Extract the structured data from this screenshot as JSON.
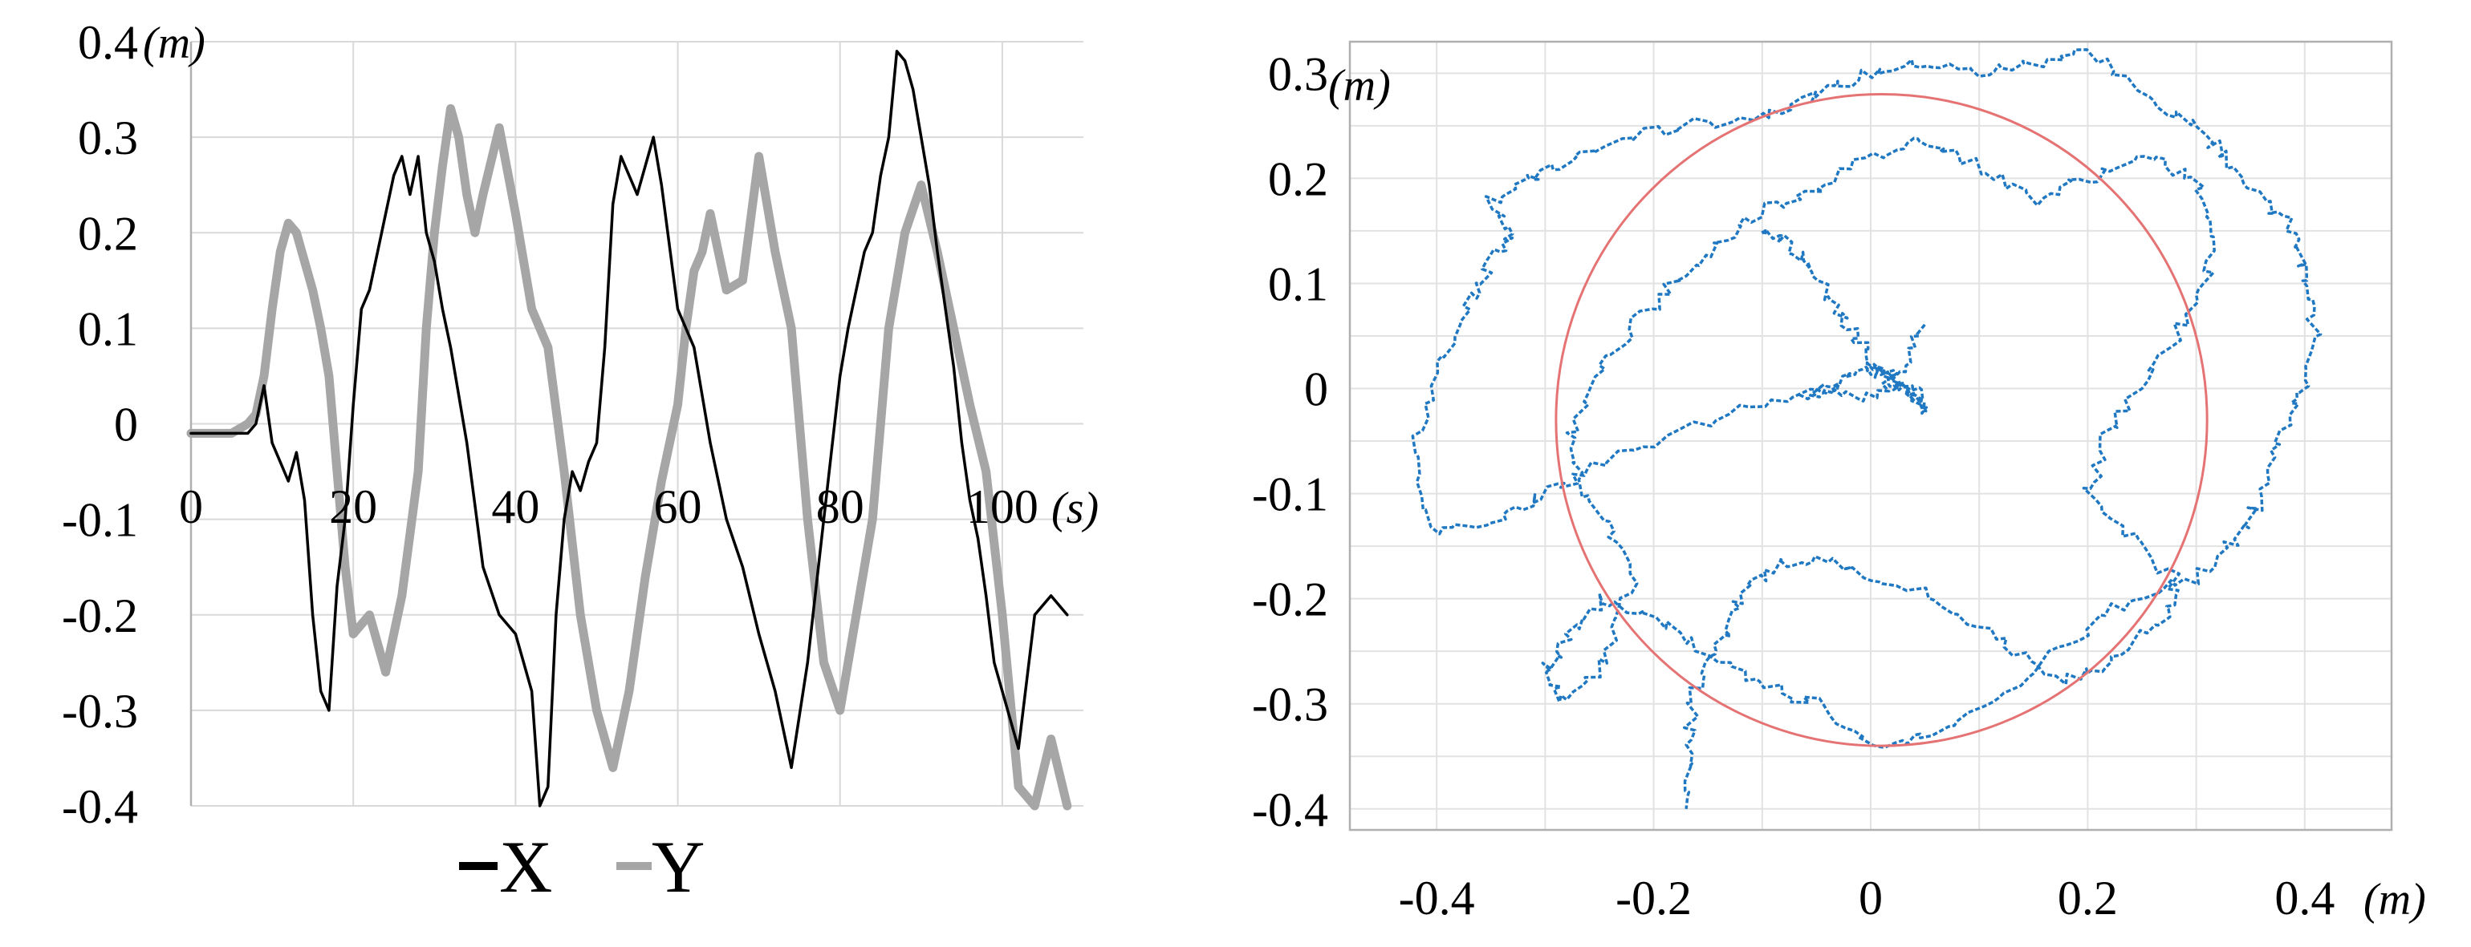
{
  "chart_data": [
    {
      "type": "line",
      "x_unit": "(s)",
      "y_unit": "(m)",
      "xlim": [
        0,
        110
      ],
      "ylim": [
        -0.4,
        0.4
      ],
      "x_ticks": [
        "0",
        "20",
        "40",
        "60",
        "80",
        "100"
      ],
      "y_ticks": [
        "0.4",
        "0.3",
        "0.2",
        "0.1",
        "0",
        "-0.1",
        "-0.2",
        "-0.3",
        "-0.4"
      ],
      "legend": [
        "X",
        "Y"
      ],
      "legend_position": "bottom",
      "grid": true,
      "colors": {
        "X": "#000000",
        "Y": "#a6a6a6"
      },
      "series": [
        {
          "name": "X",
          "x": [
            0,
            5,
            7,
            8,
            9,
            10,
            11,
            12,
            13,
            14,
            15,
            16,
            17,
            18,
            19,
            20,
            21,
            22,
            23,
            24,
            25,
            26,
            27,
            28,
            29,
            30,
            31,
            32,
            34,
            36,
            38,
            40,
            42,
            43,
            44,
            45,
            46,
            47,
            48,
            49,
            50,
            51,
            52,
            53,
            54,
            55,
            56,
            57,
            58,
            60,
            62,
            64,
            66,
            68,
            70,
            72,
            74,
            76,
            78,
            80,
            81,
            82,
            83,
            84,
            85,
            86,
            87,
            88,
            89,
            90,
            91,
            92,
            93,
            94,
            95,
            96,
            97,
            98,
            99,
            100,
            102,
            104,
            106,
            108
          ],
          "values": [
            -0.01,
            -0.01,
            -0.01,
            0.0,
            0.04,
            -0.02,
            -0.04,
            -0.06,
            -0.03,
            -0.08,
            -0.2,
            -0.28,
            -0.3,
            -0.17,
            -0.1,
            0.02,
            0.12,
            0.14,
            0.18,
            0.22,
            0.26,
            0.28,
            0.24,
            0.28,
            0.2,
            0.17,
            0.12,
            0.08,
            -0.02,
            -0.15,
            -0.2,
            -0.22,
            -0.28,
            -0.4,
            -0.38,
            -0.2,
            -0.1,
            -0.05,
            -0.07,
            -0.04,
            -0.02,
            0.08,
            0.23,
            0.28,
            0.26,
            0.24,
            0.27,
            0.3,
            0.25,
            0.12,
            0.08,
            -0.02,
            -0.1,
            -0.15,
            -0.22,
            -0.28,
            -0.36,
            -0.25,
            -0.1,
            0.05,
            0.1,
            0.14,
            0.18,
            0.2,
            0.26,
            0.3,
            0.39,
            0.38,
            0.35,
            0.3,
            0.25,
            0.18,
            0.12,
            0.06,
            -0.02,
            -0.08,
            -0.12,
            -0.18,
            -0.25,
            -0.28,
            -0.34,
            -0.2,
            -0.18,
            -0.2
          ]
        },
        {
          "name": "Y",
          "x": [
            0,
            5,
            7,
            8,
            9,
            10,
            11,
            12,
            13,
            14,
            15,
            16,
            17,
            18,
            19,
            20,
            22,
            24,
            26,
            28,
            29,
            30,
            31,
            32,
            33,
            34,
            35,
            36,
            38,
            40,
            42,
            44,
            46,
            48,
            50,
            52,
            54,
            56,
            58,
            60,
            61,
            62,
            63,
            64,
            65,
            66,
            68,
            70,
            72,
            74,
            76,
            78,
            80,
            82,
            84,
            86,
            88,
            90,
            92,
            94,
            96,
            98,
            100,
            102,
            104,
            106,
            108
          ],
          "values": [
            -0.01,
            -0.01,
            0.0,
            0.01,
            0.05,
            0.12,
            0.18,
            0.21,
            0.2,
            0.17,
            0.14,
            0.1,
            0.05,
            -0.05,
            -0.15,
            -0.22,
            -0.2,
            -0.26,
            -0.18,
            -0.05,
            0.1,
            0.2,
            0.27,
            0.33,
            0.3,
            0.24,
            0.2,
            0.24,
            0.31,
            0.22,
            0.12,
            0.08,
            -0.05,
            -0.2,
            -0.3,
            -0.36,
            -0.28,
            -0.16,
            -0.06,
            0.02,
            0.1,
            0.16,
            0.18,
            0.22,
            0.18,
            0.14,
            0.15,
            0.28,
            0.18,
            0.1,
            -0.1,
            -0.25,
            -0.3,
            -0.2,
            -0.1,
            0.1,
            0.2,
            0.25,
            0.18,
            0.1,
            0.02,
            -0.05,
            -0.2,
            -0.38,
            -0.4,
            -0.33,
            -0.4
          ]
        }
      ]
    },
    {
      "type": "scatter",
      "x_unit": "(m)",
      "y_unit": "(m)",
      "xlim": [
        -0.48,
        0.48
      ],
      "ylim": [
        -0.42,
        0.33
      ],
      "x_ticks": [
        "-0.4",
        "-0.2",
        "0",
        "0.2",
        "0.4"
      ],
      "y_ticks": [
        "0.3",
        "0.2",
        "0.1",
        "0",
        "-0.1",
        "-0.2",
        "-0.3",
        "-0.4"
      ],
      "grid": true,
      "colors": {
        "trajectory": "#1f78c1",
        "fit_circle": "#e57373"
      },
      "fit_circle": {
        "center": [
          0.01,
          -0.03
        ],
        "radius_x": 0.3,
        "radius_y": 0.31
      },
      "series": [
        {
          "x": [
            0.05,
            0.03,
            0.0,
            -0.05,
            -0.12,
            -0.2,
            -0.26,
            -0.3,
            -0.34,
            -0.4,
            -0.42,
            -0.4,
            -0.37,
            -0.35,
            -0.33,
            -0.35,
            -0.31,
            -0.27,
            -0.22,
            -0.17,
            -0.1,
            -0.05,
            0.0,
            0.05,
            0.1,
            0.15,
            0.2,
            0.25,
            0.3,
            0.33,
            0.36,
            0.39,
            0.4,
            0.41,
            0.4,
            0.38,
            0.36,
            0.34,
            0.3,
            0.24,
            0.18,
            0.12,
            0.05,
            0.0,
            -0.05,
            -0.1,
            -0.15,
            -0.2,
            -0.25,
            -0.28,
            -0.3,
            -0.28,
            -0.24,
            -0.22,
            -0.25,
            -0.28,
            -0.26,
            -0.22,
            -0.18,
            -0.14,
            -0.1,
            -0.05,
            0.0,
            0.05,
            0.1,
            0.15,
            0.2,
            0.25,
            0.3,
            0.32,
            0.3,
            0.26,
            0.22,
            0.2,
            0.24,
            0.28,
            0.27,
            0.22,
            0.18,
            0.12,
            0.06,
            0.0,
            -0.05,
            -0.09,
            -0.12,
            -0.14,
            -0.16,
            -0.17,
            -0.17
          ],
          "y": [
            0.06,
            0.02,
            -0.01,
            0.0,
            -0.02,
            -0.05,
            -0.08,
            -0.1,
            -0.12,
            -0.14,
            -0.06,
            0.02,
            0.08,
            0.12,
            0.15,
            0.18,
            0.2,
            0.22,
            0.24,
            0.25,
            0.26,
            0.28,
            0.3,
            0.31,
            0.3,
            0.31,
            0.32,
            0.28,
            0.25,
            0.22,
            0.18,
            0.15,
            0.1,
            0.05,
            0.0,
            -0.04,
            -0.1,
            -0.14,
            -0.18,
            -0.2,
            -0.24,
            -0.3,
            -0.33,
            -0.34,
            -0.3,
            -0.28,
            -0.25,
            -0.22,
            -0.2,
            -0.24,
            -0.27,
            -0.3,
            -0.25,
            -0.18,
            -0.12,
            -0.06,
            0.0,
            0.06,
            0.1,
            0.14,
            0.17,
            0.19,
            0.22,
            0.24,
            0.21,
            0.18,
            0.2,
            0.22,
            0.2,
            0.14,
            0.08,
            0.02,
            -0.04,
            -0.1,
            -0.14,
            -0.18,
            -0.22,
            -0.26,
            -0.28,
            -0.24,
            -0.2,
            -0.18,
            -0.16,
            -0.17,
            -0.2,
            -0.24,
            -0.28,
            -0.34,
            -0.4
          ]
        },
        {
          "x": [
            -0.06,
            -0.04,
            -0.02,
            0.0,
            0.02,
            0.03,
            0.04,
            0.05,
            0.04,
            0.02,
            0.0,
            -0.02,
            -0.04,
            -0.06,
            -0.08,
            -0.1
          ],
          "y": [
            -0.005,
            0.0,
            0.01,
            0.02,
            0.01,
            0.0,
            -0.01,
            -0.02,
            -0.005,
            0.01,
            0.03,
            0.06,
            0.09,
            0.12,
            0.14,
            0.15
          ]
        }
      ]
    }
  ]
}
